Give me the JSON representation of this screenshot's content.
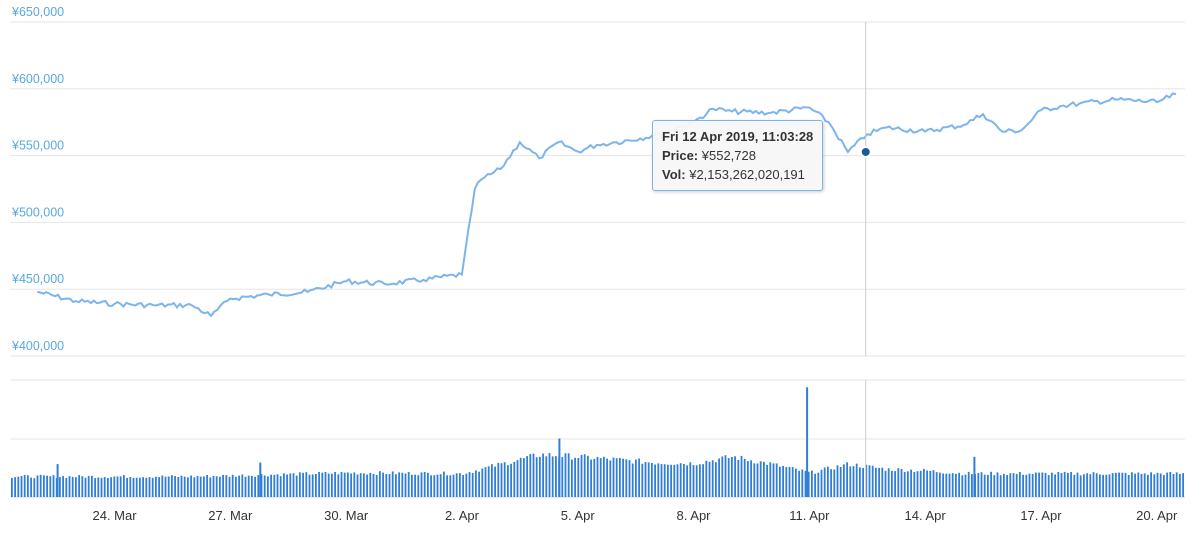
{
  "chart_data": {
    "type": "line",
    "y_axis": {
      "min": 400000,
      "max": 650000,
      "ticks": [
        "¥400,000",
        "¥450,000",
        "¥500,000",
        "¥550,000",
        "¥600,000",
        "¥650,000"
      ]
    },
    "x_ticks": [
      "24. Mar",
      "27. Mar",
      "30. Mar",
      "2. Apr",
      "5. Apr",
      "8. Apr",
      "11. Apr",
      "14. Apr",
      "17. Apr",
      "20. Apr"
    ],
    "series": [
      {
        "kind": "price",
        "color": "#7cb5ec",
        "x": [
          "2019-03-22",
          "2019-03-23",
          "2019-03-24",
          "2019-03-25",
          "2019-03-26",
          "2019-03-26T12",
          "2019-03-27",
          "2019-03-28",
          "2019-03-29",
          "2019-03-30",
          "2019-03-31",
          "2019-04-01",
          "2019-04-02",
          "2019-04-02T08",
          "2019-04-02T12",
          "2019-04-03",
          "2019-04-03T12",
          "2019-04-04",
          "2019-04-04T12",
          "2019-04-05",
          "2019-04-05T12",
          "2019-04-06",
          "2019-04-07",
          "2019-04-08",
          "2019-04-08T12",
          "2019-04-09",
          "2019-04-10",
          "2019-04-11",
          "2019-04-11T12",
          "2019-04-12",
          "2019-04-12T12",
          "2019-04-13",
          "2019-04-14",
          "2019-04-15",
          "2019-04-15T12",
          "2019-04-16",
          "2019-04-16T12",
          "2019-04-17",
          "2019-04-17T12",
          "2019-04-18",
          "2019-04-19",
          "2019-04-20",
          "2019-04-20T12"
        ],
        "y": [
          448000,
          441000,
          439000,
          438000,
          438000,
          430000,
          443000,
          446000,
          448000,
          456000,
          454000,
          457000,
          461000,
          525000,
          532000,
          540000,
          560000,
          548000,
          560000,
          553000,
          558000,
          560000,
          565000,
          575000,
          585000,
          583000,
          582000,
          586000,
          575000,
          552728,
          566000,
          571000,
          568000,
          573000,
          581000,
          568000,
          569000,
          584000,
          587000,
          589000,
          592000,
          590000,
          596000
        ]
      }
    ],
    "volume": {
      "color": "#2f7ed8",
      "x": [
        "2019-03-22",
        "2019-03-26",
        "2019-03-30",
        "2019-04-02",
        "2019-04-03",
        "2019-04-04",
        "2019-04-05",
        "2019-04-07",
        "2019-04-08",
        "2019-04-09",
        "2019-04-10",
        "2019-04-11",
        "2019-04-12",
        "2019-04-13",
        "2019-04-14",
        "2019-04-15",
        "2019-04-17",
        "2019-04-20T12"
      ],
      "y": [
        0.28,
        0.28,
        0.33,
        0.32,
        0.45,
        0.58,
        0.55,
        0.47,
        0.46,
        0.55,
        0.45,
        0.33,
        0.45,
        0.38,
        0.36,
        0.32,
        0.32,
        0.32
      ],
      "spikes": [
        {
          "x": "2019-03-22T12",
          "y": 0.45
        },
        {
          "x": "2019-03-27T18",
          "y": 0.47
        },
        {
          "x": "2019-04-04T12",
          "y": 0.8
        },
        {
          "x": "2019-04-10T22",
          "y": 1.5
        },
        {
          "x": "2019-04-15T06",
          "y": 0.55
        }
      ]
    },
    "crosshair_x": "2019-04-12T11:03:28",
    "tooltip": {
      "header": "Fri 12 Apr 2019, 11:03:28",
      "price_label": "Price:",
      "price_value": "¥552,728",
      "vol_label": "Vol:",
      "vol_value": "¥2,153,262,020,191"
    }
  }
}
